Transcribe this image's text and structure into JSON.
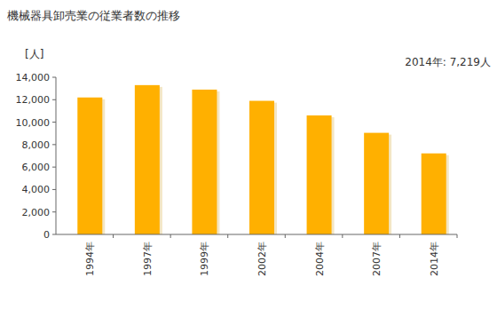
{
  "chart_data": {
    "type": "bar",
    "title": "機械器具卸売業の従業者数の推移",
    "y_label": "[人]",
    "annotation": "2014年: 7,219人",
    "categories": [
      "1994年",
      "1997年",
      "1999年",
      "2002年",
      "2004年",
      "2007年",
      "2014年"
    ],
    "values": [
      12200,
      13300,
      12900,
      11900,
      10600,
      9050,
      7219
    ],
    "color": "#ffb000",
    "ylim": [
      0,
      14000
    ],
    "yticks": [
      0,
      {
        "value": 2000,
        "label": "2,000"
      },
      {
        "value": 4000,
        "label": "4,000"
      },
      {
        "value": 6000,
        "label": "6,000"
      },
      {
        "value": 8000,
        "label": "8,000"
      },
      {
        "value": 10000,
        "label": "10,000"
      },
      {
        "value": 12000,
        "label": "12,000"
      },
      {
        "value": 14000,
        "label": "14,000"
      }
    ],
    "grid": false
  }
}
